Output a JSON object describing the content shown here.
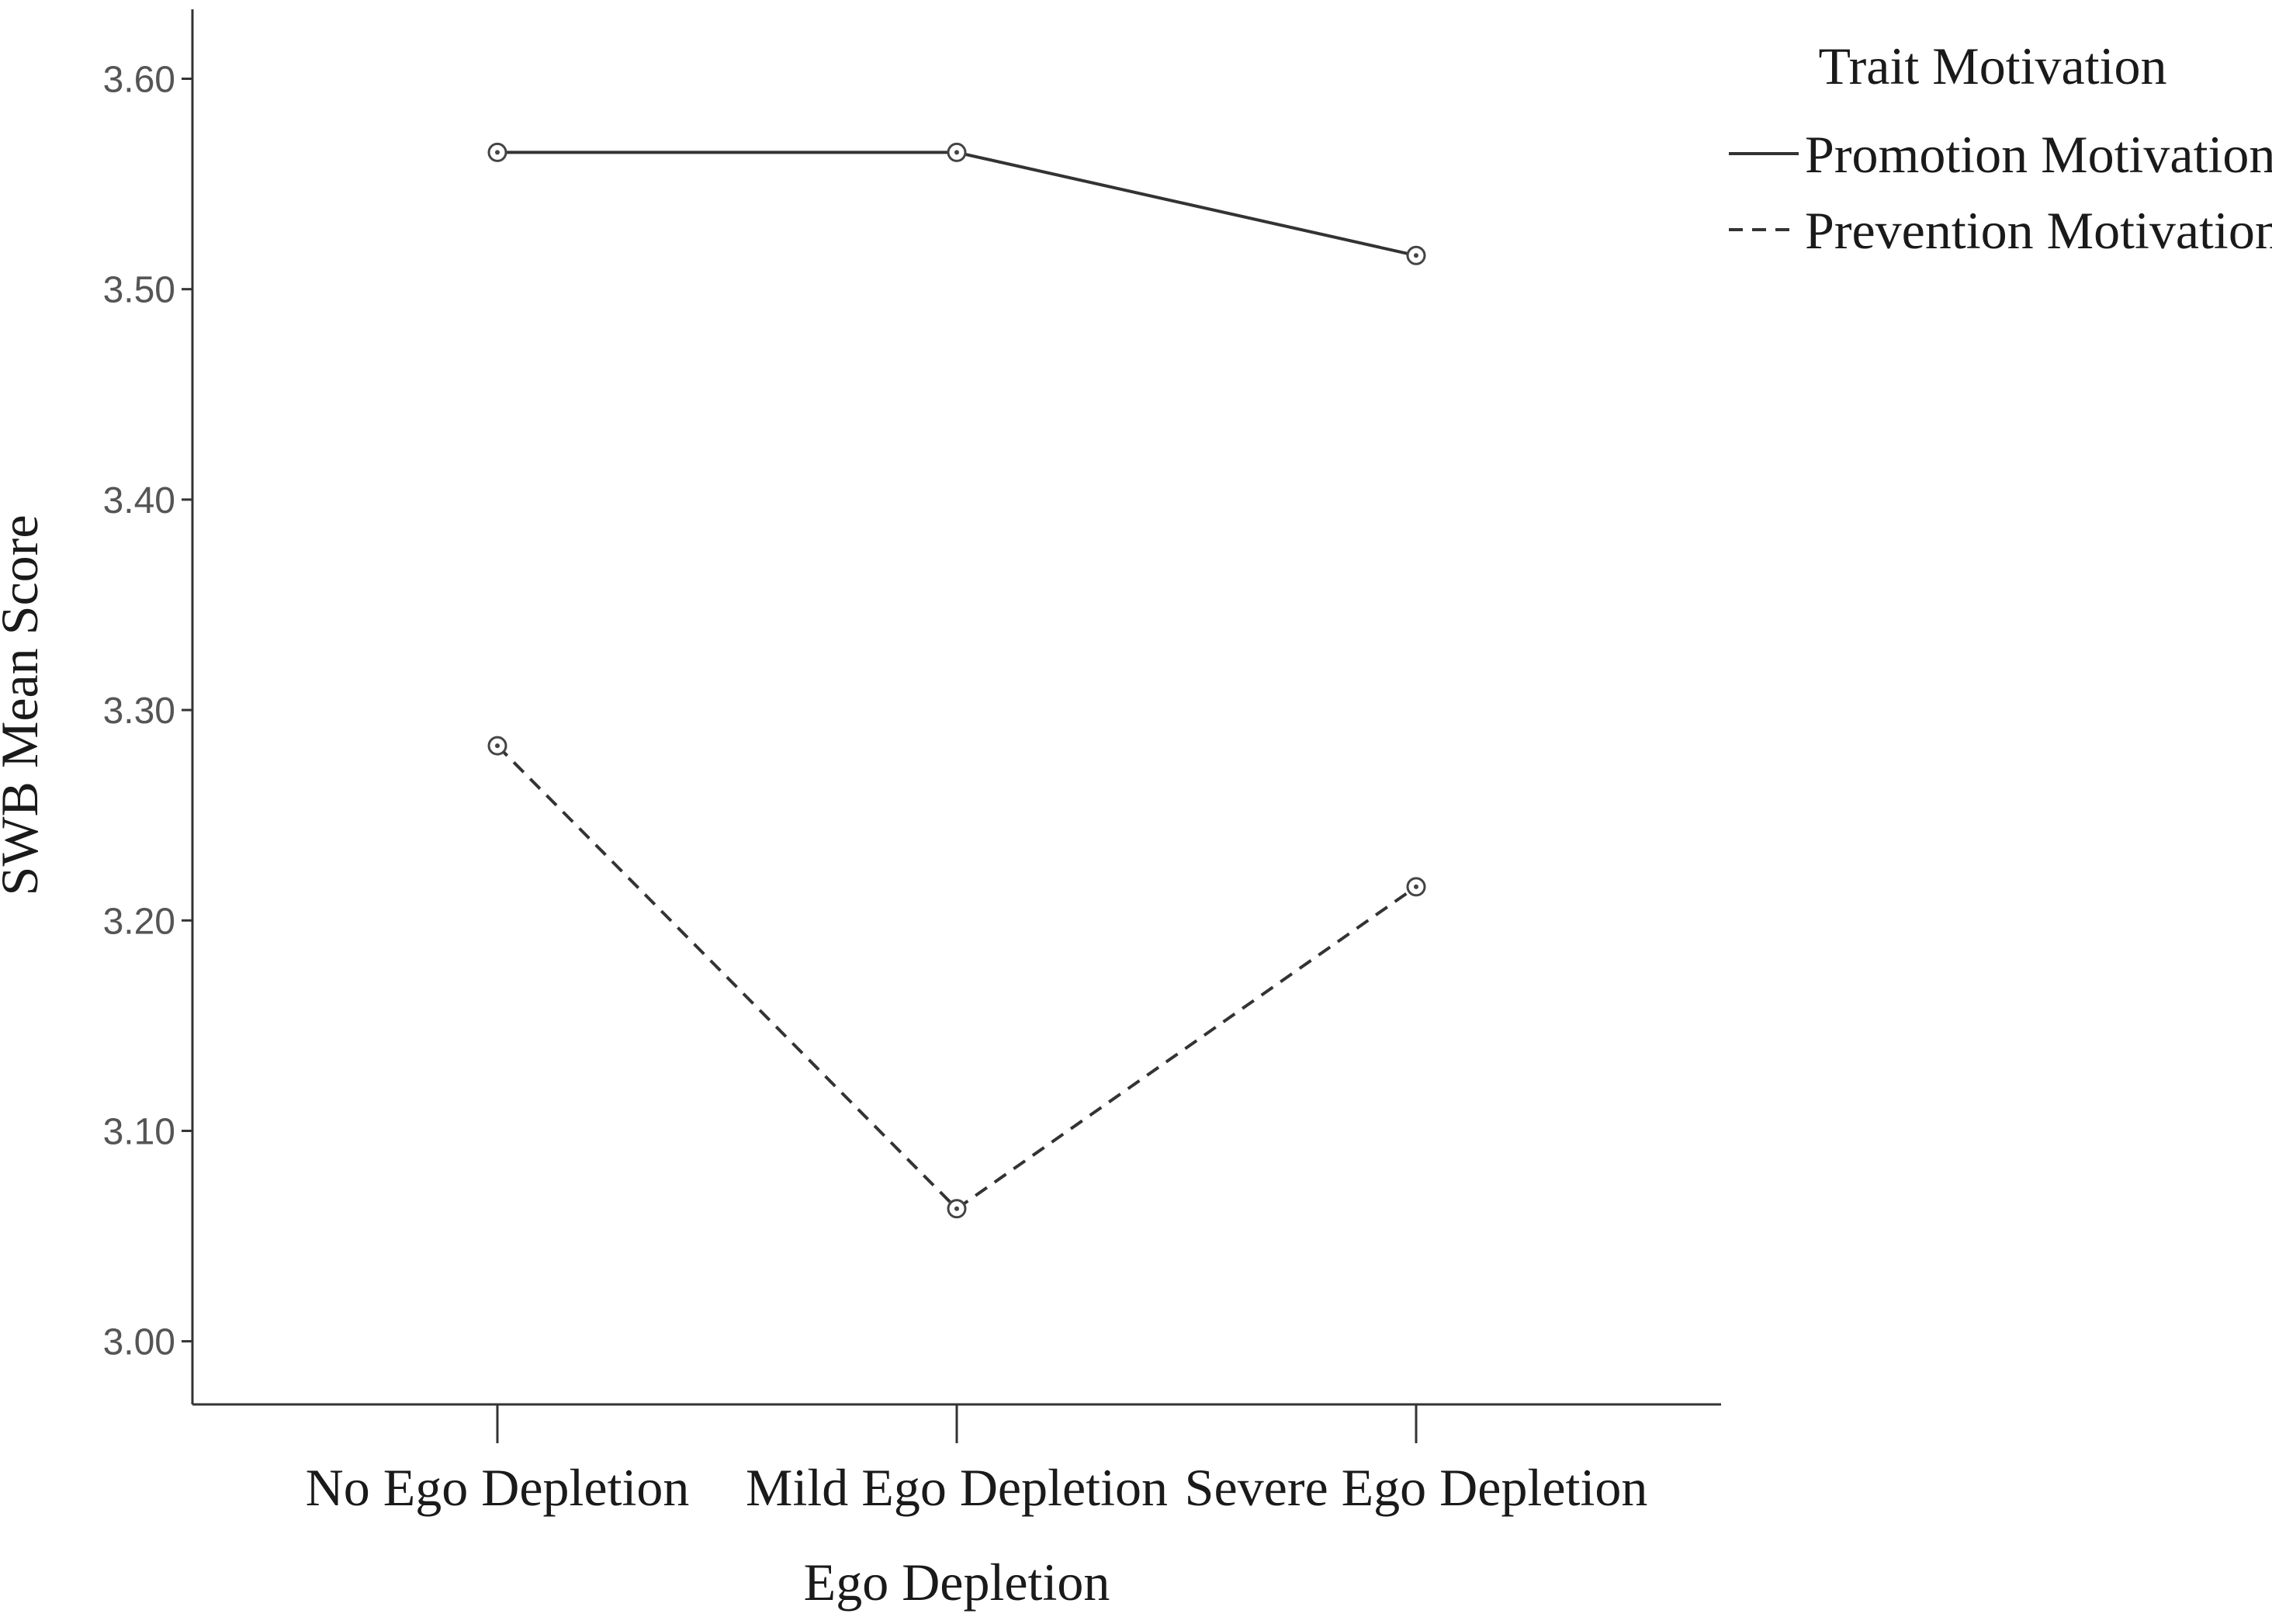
{
  "chart_data": {
    "type": "line",
    "xlabel": "Ego Depletion",
    "ylabel": "SWB Mean Score",
    "categories": [
      "No Ego Depletion",
      "Mild Ego Depletion",
      "Severe Ego Depletion"
    ],
    "ylim": [
      2.97,
      3.633
    ],
    "yticks": [
      3.0,
      3.1,
      3.2,
      3.3,
      3.4,
      3.5,
      3.6
    ],
    "ytick_labels": [
      "3.00",
      "3.10",
      "3.20",
      "3.30",
      "3.40",
      "3.50",
      "3.60"
    ],
    "legend_title": "Trait Motivation",
    "legend_position": "top-right",
    "grid": false,
    "marker": "open-circle",
    "series": [
      {
        "name": "Promotion Motivation",
        "values": [
          3.565,
          3.565,
          3.516
        ],
        "line_style": "solid",
        "color": "#333333"
      },
      {
        "name": "Prevention Motivation",
        "values": [
          3.283,
          3.063,
          3.216
        ],
        "line_style": "dashed",
        "color": "#333333"
      }
    ]
  }
}
